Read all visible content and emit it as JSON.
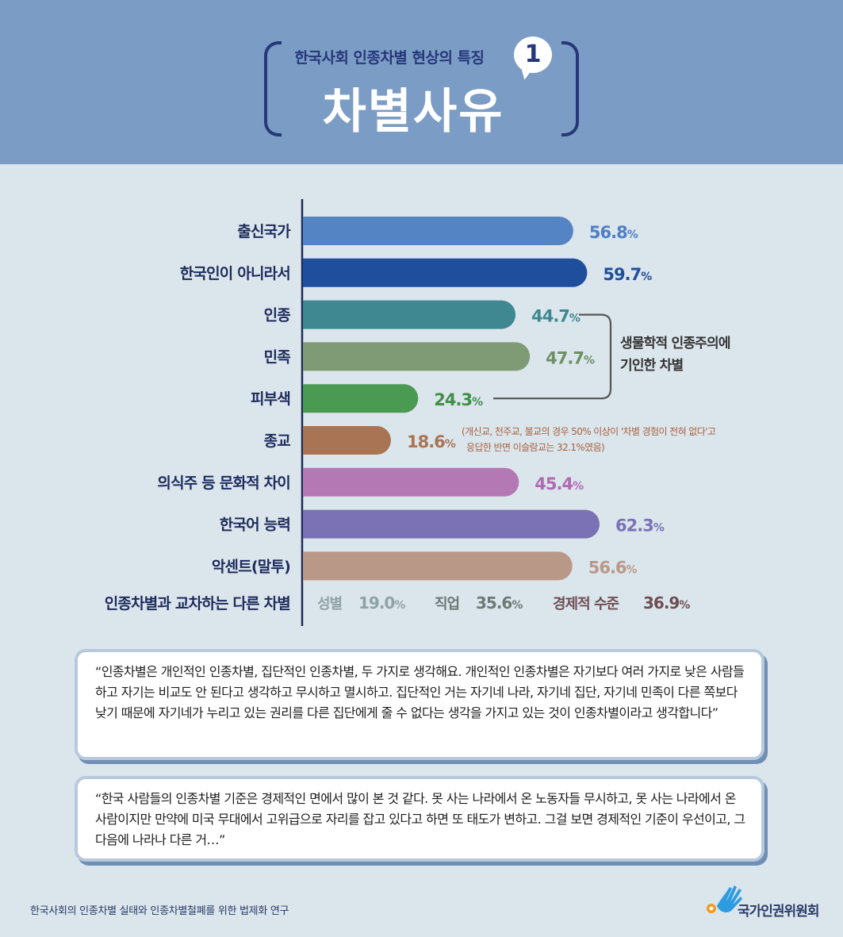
{
  "header": {
    "subtitle": "한국사회 인종차별 현상의 특징",
    "number": "1",
    "title": "차별사유"
  },
  "chart_data": {
    "type": "bar",
    "orientation": "horizontal",
    "unit": "%",
    "xlim": [
      0,
      70
    ],
    "grid": false,
    "categories": [
      "출신국가",
      "한국인이 아니라서",
      "인종",
      "민족",
      "피부색",
      "종교",
      "의식주 등 문화적 차이",
      "한국어 능력",
      "악센트(말투)"
    ],
    "values": [
      56.8,
      59.7,
      44.7,
      47.7,
      24.3,
      18.6,
      45.4,
      62.3,
      56.6
    ],
    "colors": [
      "#5584c4",
      "#1f4f9c",
      "#3f8891",
      "#7f9b75",
      "#4a9a52",
      "#a87453",
      "#b479b5",
      "#7a72b5",
      "#b99888"
    ],
    "value_colors": [
      "#4f80c3",
      "#1f4f9c",
      "#3f8891",
      "#6e8f64",
      "#3f8f47",
      "#a87453",
      "#b06ab1",
      "#7a72b5",
      "#b99888"
    ],
    "bracket_label_line1": "생물학적 인종주의에",
    "bracket_label_line2": "기인한 차별",
    "note_line1": "(개신교, 천주교, 불교의 경우 50% 이상이 '차별 경험이 전혀 없다'고",
    "note_line2": "응답한 반면 이슬람교는 32.1%였음)",
    "intersect_label": "인종차별과 교차하는 다른 차별",
    "intersect": [
      {
        "name": "성별",
        "value": "19.0",
        "color": "#8fa2a5"
      },
      {
        "name": "직업",
        "value": "35.6",
        "color": "#6b7a74"
      },
      {
        "name": "경제적 수준",
        "value": "36.9",
        "color": "#6e4e54"
      }
    ],
    "percent_sign": "%"
  },
  "quotes": [
    {
      "text": "“인종차별은 개인적인 인종차별, 집단적인 인종차별, 두 가지로 생각해요. 개인적인 인종차별은 자기보다 여러 가지로 낮은 사람들하고 자기는 비교도 안 된다고 생각하고 무시하고 멸시하고. 집단적인 거는 자기네 나라, 자기네 집단, 자기네 민족이 다른 쪽보다 낮기 때문에 자기네가 누리고 있는 권리를 다른 집단에게 줄 수 없다는 생각을 가지고 있는 것이 인종차별이라고 생각합니다”"
    },
    {
      "text": "“한국 사람들의 인종차별 기준은 경제적인 면에서 많이 본 것 같다. 못 사는 나라에서 온 노동자들 무시하고, 못 사는 나라에서 온 사람이지만 만약에 미국 무대에서 고위급으로 자리를 잡고 있다고 하면 또 태도가 변하고. 그걸 보면 경제적인 기준이 우선이고, 그다음에 나라나 다른 거…”"
    }
  ],
  "footer": {
    "source": "한국사회의 인종차별 실태와 인종차별철폐를 위한 법제화 연구",
    "logo_text": "국가인권위원회"
  }
}
